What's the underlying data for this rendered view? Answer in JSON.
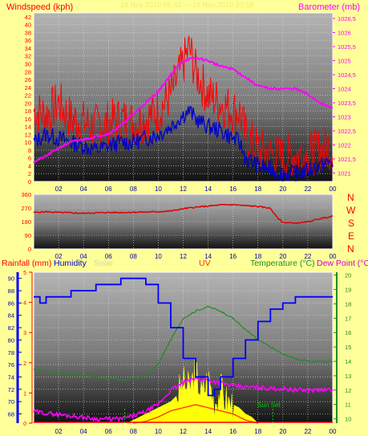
{
  "colors": {
    "page_bg": "#ffff99",
    "windspeed": "#ff0000",
    "windavg": "#0000cc",
    "barometer": "#ff00ff",
    "direction": "#e00000",
    "humidity": "#0000ff",
    "solar": "#ffff00",
    "temperature": "#228b22",
    "dewpoint": "#ff00ff",
    "uv": "#ff2200"
  },
  "top_panel": {
    "left_title": "Windspeed (kph)",
    "right_title": "Barometer (mb)",
    "faded_header": "18 Nov 2010 06:32 — 18 Nov 2010 23:59"
  },
  "mid_panel": {
    "compass": [
      "N",
      "W",
      "S",
      "E",
      "N"
    ]
  },
  "bottom_panel": {
    "rain_title": "Rainfall (mm)",
    "humidity_title": "Humidity",
    "solar_title": "Solar",
    "uv_title": "UV",
    "temp_title": "Temperature (°C)",
    "dew_title": "Dew Point (°C)",
    "sunset_label": "Sun Set"
  },
  "chart_data": [
    {
      "type": "line",
      "id": "wind_baro",
      "x_ticks": [
        "02",
        "04",
        "06",
        "08",
        "10",
        "12",
        "14",
        "16",
        "18",
        "20",
        "22",
        "00"
      ],
      "x_range": [
        0,
        24
      ],
      "y_left_ticks": [
        0,
        2,
        4,
        6,
        8,
        10,
        12,
        14,
        16,
        18,
        20,
        22,
        24,
        26,
        28,
        30,
        32,
        34,
        36,
        38,
        40,
        42
      ],
      "y_left_range": [
        0,
        43
      ],
      "y_right_ticks": [
        "1021",
        "1021,5",
        "1022",
        "1022,5",
        "1023",
        "1023,5",
        "1024",
        "1024,5",
        "1025",
        "1025,5",
        "1026",
        "1026,5"
      ],
      "y_right_range": [
        1020.7,
        1026.7
      ],
      "series": [
        {
          "key": "gust",
          "axis": "left",
          "x": [
            0,
            1,
            2,
            3,
            4,
            5,
            6,
            7,
            8,
            9,
            10,
            11,
            12,
            12.5,
            13,
            14,
            15,
            16,
            16.5,
            17,
            18,
            19,
            20,
            21,
            22,
            23,
            24
          ],
          "y": [
            18,
            17,
            20,
            16,
            15,
            14,
            15,
            16,
            15,
            16,
            18,
            22,
            30,
            34,
            28,
            22,
            20,
            18,
            18,
            12,
            8,
            7,
            6,
            7,
            7,
            8,
            9
          ]
        },
        {
          "key": "avg",
          "axis": "left",
          "x": [
            0,
            1,
            2,
            3,
            4,
            5,
            6,
            7,
            8,
            9,
            10,
            11,
            12,
            12.5,
            13,
            14,
            15,
            16,
            16.5,
            17,
            18,
            19,
            20,
            21,
            22,
            23,
            24
          ],
          "y": [
            10,
            12,
            11,
            10,
            9,
            8,
            9,
            10,
            10,
            11,
            12,
            14,
            17,
            18,
            16,
            14,
            13,
            11,
            10,
            6,
            4,
            3,
            2,
            2,
            3,
            4,
            5
          ]
        },
        {
          "key": "barometer",
          "axis": "right",
          "x": [
            0,
            1,
            2,
            3,
            4,
            5,
            6,
            7,
            8,
            9,
            10,
            11,
            12,
            13,
            14,
            15,
            16,
            17,
            18,
            19,
            20,
            21,
            22,
            23,
            24
          ],
          "y": [
            1021.4,
            1021.6,
            1021.9,
            1022.1,
            1022.2,
            1022.3,
            1022.4,
            1022.7,
            1023.1,
            1023.5,
            1023.9,
            1024.5,
            1025.0,
            1025.1,
            1025.0,
            1024.8,
            1024.7,
            1024.4,
            1024.1,
            1024.0,
            1024.0,
            1024.0,
            1023.8,
            1023.5,
            1023.3
          ]
        }
      ]
    },
    {
      "type": "line",
      "id": "direction",
      "x_ticks": [
        "02",
        "04",
        "06",
        "08",
        "10",
        "12",
        "14",
        "16",
        "18",
        "20",
        "22",
        "00"
      ],
      "x_range": [
        0,
        24
      ],
      "y_ticks": [
        0,
        90,
        180,
        270,
        360
      ],
      "y_range": [
        0,
        360
      ],
      "series": [
        {
          "key": "direction",
          "x": [
            0,
            1,
            2,
            3,
            4,
            5,
            6,
            7,
            8,
            9,
            10,
            11,
            12,
            13,
            14,
            15,
            16,
            17,
            18,
            19,
            19.5,
            20,
            21,
            22,
            23,
            24
          ],
          "y": [
            240,
            245,
            240,
            238,
            235,
            238,
            240,
            240,
            242,
            243,
            245,
            250,
            265,
            275,
            282,
            290,
            292,
            285,
            280,
            268,
            210,
            175,
            170,
            178,
            200,
            215
          ]
        }
      ]
    },
    {
      "type": "line",
      "id": "weather",
      "x_ticks": [
        "02",
        "04",
        "06",
        "08",
        "10",
        "12",
        "14",
        "16",
        "18",
        "20",
        "22",
        "00"
      ],
      "x_range": [
        0,
        24
      ],
      "y_hum_ticks": [
        68,
        70,
        72,
        74,
        76,
        78,
        80,
        82,
        84,
        86,
        88,
        90
      ],
      "y_hum_range": [
        66.5,
        91
      ],
      "y_rain_ticks": [
        0,
        1,
        2,
        3,
        4,
        5
      ],
      "y_temp_ticks": [
        10,
        11,
        12,
        13,
        14,
        15,
        16,
        17,
        18,
        19,
        20
      ],
      "y_temp_range": [
        9.7,
        20.2
      ],
      "series": [
        {
          "key": "humidity",
          "axis": "humidity",
          "x": [
            0,
            0.5,
            1,
            2,
            3,
            4,
            5,
            6,
            7,
            8,
            9,
            10,
            11,
            12,
            13,
            14,
            14.5,
            15,
            16,
            17,
            18,
            19,
            20,
            21,
            22,
            23,
            24
          ],
          "y": [
            87,
            86,
            87,
            87,
            88,
            88,
            89,
            89,
            90,
            90,
            89,
            86,
            82,
            77,
            74,
            71,
            72,
            74,
            77,
            80,
            83,
            85,
            86,
            87,
            87,
            87,
            87
          ]
        },
        {
          "key": "temperature",
          "axis": "temp",
          "x": [
            0,
            1,
            2,
            3,
            4,
            5,
            6,
            7,
            8,
            9,
            10,
            11,
            12,
            13,
            14,
            15,
            16,
            17,
            18,
            19,
            20,
            21,
            22,
            23,
            24
          ],
          "y": [
            13.4,
            13.3,
            13.2,
            13.1,
            13.0,
            12.9,
            12.8,
            12.7,
            12.8,
            13.0,
            13.8,
            15.5,
            17.0,
            17.5,
            17.8,
            17.5,
            17.0,
            16.2,
            15.5,
            15.0,
            14.5,
            14.2,
            14.0,
            14.0,
            14.0
          ]
        },
        {
          "key": "dewpoint",
          "axis": "temp",
          "x": [
            0,
            1,
            2,
            3,
            4,
            5,
            6,
            7,
            8,
            9,
            10,
            11,
            12,
            13,
            14,
            15,
            16,
            17,
            18,
            19,
            20,
            21,
            22,
            23,
            24
          ],
          "y": [
            10.5,
            10.4,
            10.3,
            10.2,
            10.1,
            10.0,
            10.0,
            10.0,
            10.2,
            10.5,
            11.0,
            12.0,
            12.5,
            12.8,
            12.7,
            12.5,
            12.3,
            12.2,
            12.2,
            12.1,
            12.1,
            12.0,
            12.0,
            12.0,
            12.0
          ]
        },
        {
          "key": "solar",
          "axis": "humidity",
          "x": [
            7.5,
            8,
            9,
            10,
            11,
            11.5,
            12,
            12.5,
            13,
            13.5,
            14,
            14.5,
            15,
            15.5,
            16,
            16.5,
            17,
            17.5,
            18
          ],
          "y": [
            66.5,
            67,
            68,
            69,
            70,
            71,
            73,
            72,
            75,
            71,
            74,
            70,
            72,
            70,
            69.5,
            69,
            68,
            67.5,
            66.5
          ]
        },
        {
          "key": "uv",
          "axis": "humidity",
          "x": [
            8,
            9,
            10,
            11,
            12,
            13,
            14,
            15,
            16,
            17,
            18
          ],
          "y": [
            66.5,
            66.8,
            67.5,
            68.5,
            69,
            69.5,
            69,
            68.5,
            68,
            67,
            66.5
          ]
        }
      ],
      "markers": [
        {
          "label": "",
          "x": 7.3
        },
        {
          "label": "Sun Set",
          "x": 19.2
        }
      ]
    }
  ]
}
